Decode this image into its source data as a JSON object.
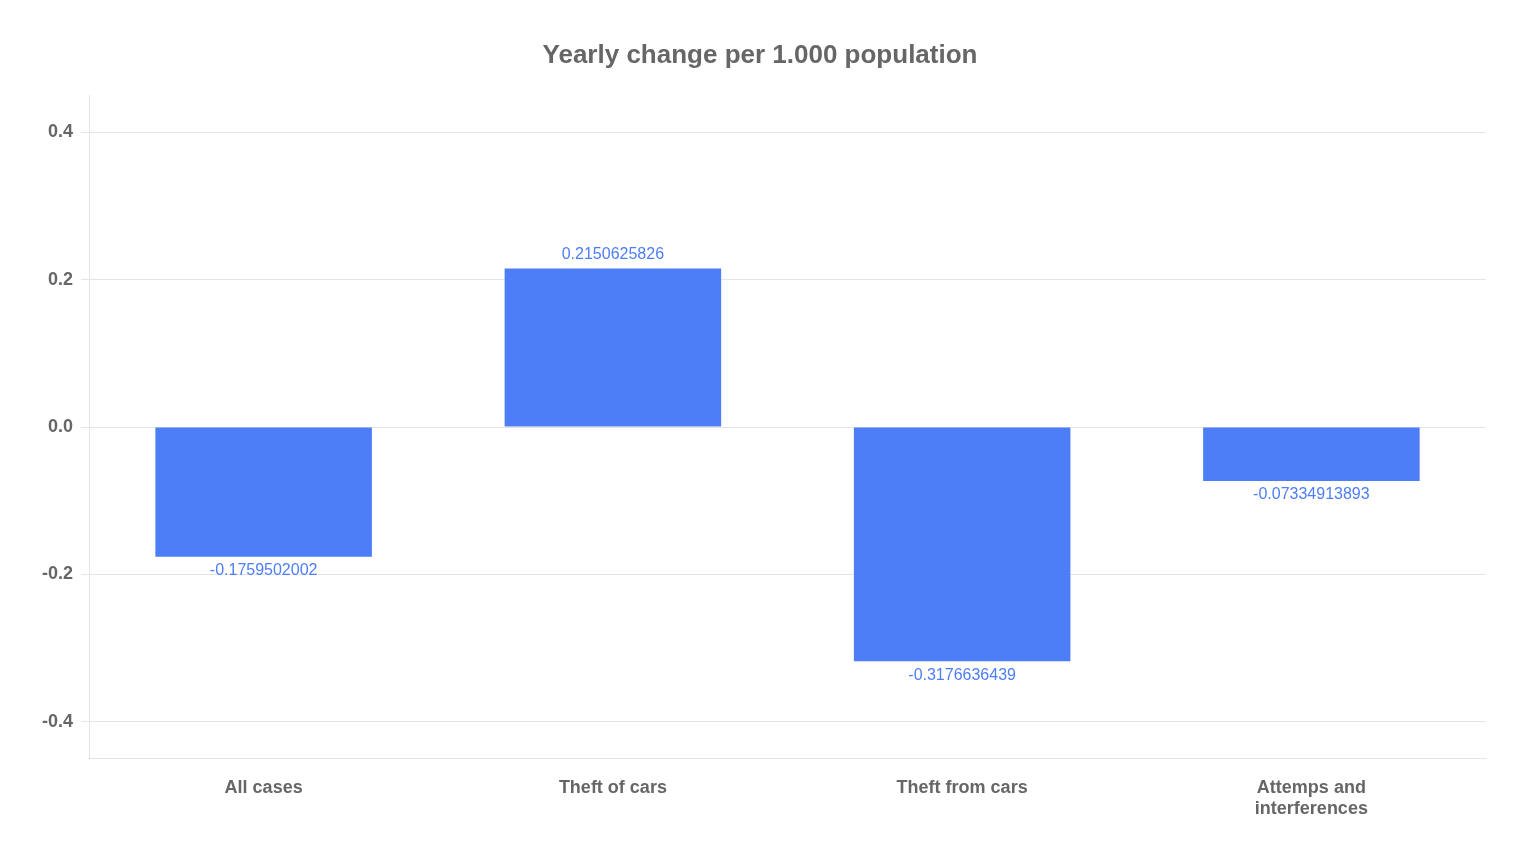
{
  "chart_data": {
    "type": "bar",
    "title": "Yearly change per 1.000 population",
    "categories": [
      "All cases",
      "Theft of cars",
      "Theft from cars",
      "Attemps and\ninterferences"
    ],
    "values": [
      -0.1759502002,
      0.2150625826,
      -0.3176636439,
      -0.07334913893
    ],
    "color": "#4d7ef7",
    "ylim": [
      -0.45,
      0.45
    ],
    "yticks": [
      -0.4,
      -0.2,
      {
        "value": 0,
        "label": "0.0"
      },
      0.2,
      0.4
    ],
    "grid": true,
    "data_labels": true
  }
}
